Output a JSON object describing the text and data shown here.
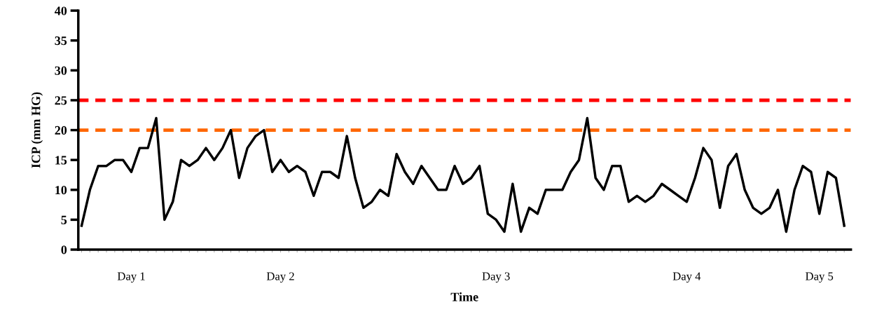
{
  "chart_data": {
    "type": "line",
    "xlabel": "Time",
    "ylabel": "ICP (mm HG)",
    "categories": [
      null,
      null,
      null,
      null,
      null,
      null,
      "Day 1",
      null,
      null,
      null,
      null,
      null,
      null,
      null,
      null,
      null,
      null,
      null,
      null,
      null,
      null,
      null,
      null,
      null,
      "Day 2",
      null,
      null,
      null,
      null,
      null,
      null,
      null,
      null,
      null,
      null,
      null,
      null,
      null,
      null,
      null,
      null,
      null,
      null,
      null,
      null,
      null,
      null,
      null,
      null,
      null,
      "Day 3",
      null,
      null,
      null,
      null,
      null,
      null,
      null,
      null,
      null,
      null,
      null,
      null,
      null,
      null,
      null,
      null,
      null,
      null,
      null,
      null,
      null,
      null,
      "Day 4",
      null,
      null,
      null,
      null,
      null,
      null,
      null,
      null,
      null,
      null,
      null,
      null,
      null,
      null,
      null,
      "Day 5",
      null,
      null,
      null
    ],
    "series": [
      {
        "color": "#000000",
        "values": [
          4,
          10,
          14,
          14,
          15,
          15,
          13,
          17,
          17,
          22,
          5,
          8,
          15,
          14,
          15,
          17,
          15,
          17,
          20,
          12,
          17,
          19,
          20,
          13,
          15,
          13,
          14,
          13,
          9,
          13,
          13,
          12,
          19,
          12,
          7,
          8,
          10,
          9,
          16,
          13,
          11,
          14,
          12,
          10,
          10,
          14,
          11,
          12,
          14,
          6,
          5,
          3,
          11,
          3,
          7,
          6,
          10,
          10,
          10,
          13,
          15,
          22,
          12,
          10,
          14,
          14,
          8,
          9,
          8,
          9,
          11,
          10,
          9,
          8,
          12,
          17,
          15,
          7,
          14,
          16,
          10,
          7,
          6,
          7,
          10,
          3,
          10,
          14,
          13,
          6,
          13,
          12,
          4
        ]
      }
    ],
    "ylim": [
      0,
      40
    ],
    "yticks": [
      0,
      5,
      10,
      15,
      20,
      25,
      30,
      35,
      40
    ],
    "ref_lines": [
      {
        "axis": "y",
        "value": 25,
        "label": null,
        "color": "#ff0000",
        "line_style": "dashed"
      },
      {
        "axis": "y",
        "value": 20,
        "label": null,
        "color": "#ff6600",
        "line_style": "dashed"
      }
    ],
    "grid": false,
    "legend": false,
    "marker": "none",
    "line_style": "solid"
  }
}
